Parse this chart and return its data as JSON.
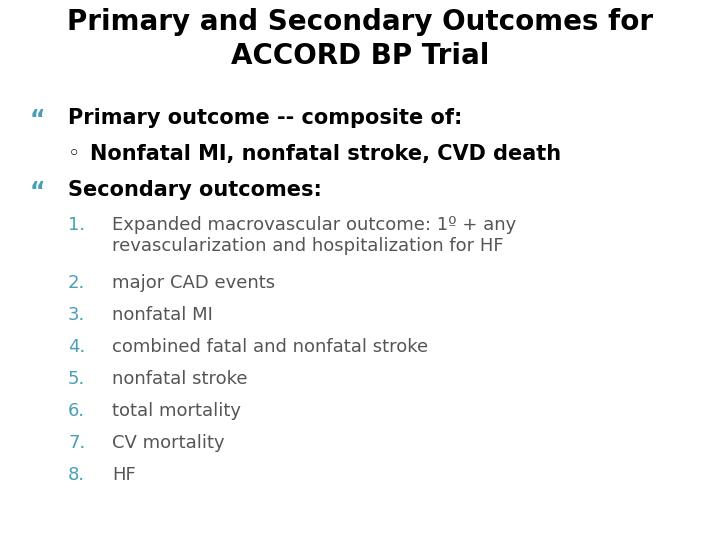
{
  "title_line1": "Primary and Secondary Outcomes for",
  "title_line2": "ACCORD BP Trial",
  "title_color": "#000000",
  "title_fontsize": 20,
  "bg_color": "#ffffff",
  "bullet_color": "#4a9fb5",
  "bullet_text_color": "#000000",
  "number_color": "#4a9fb5",
  "body_text_color": "#555555",
  "bullet_symbol": "“",
  "circle_symbol": "◦",
  "lines": [
    {
      "type": "bullet",
      "text": "Primary outcome -- composite of:"
    },
    {
      "type": "sub_bullet",
      "text": "Nonfatal MI, nonfatal stroke, CVD death"
    },
    {
      "type": "bullet",
      "text": "Secondary outcomes:"
    },
    {
      "type": "numbered",
      "num": "1.",
      "text": "Expanded macrovascular outcome: 1º + any\nrevascularization and hospitalization for HF"
    },
    {
      "type": "numbered",
      "num": "2.",
      "text": "major CAD events"
    },
    {
      "type": "numbered",
      "num": "3.",
      "text": "nonfatal MI"
    },
    {
      "type": "numbered",
      "num": "4.",
      "text": "combined fatal and nonfatal stroke"
    },
    {
      "type": "numbered",
      "num": "5.",
      "text": "nonfatal stroke"
    },
    {
      "type": "numbered",
      "num": "6.",
      "text": "total mortality"
    },
    {
      "type": "numbered",
      "num": "7.",
      "text": "CV mortality"
    },
    {
      "type": "numbered",
      "num": "8.",
      "text": "HF"
    }
  ]
}
